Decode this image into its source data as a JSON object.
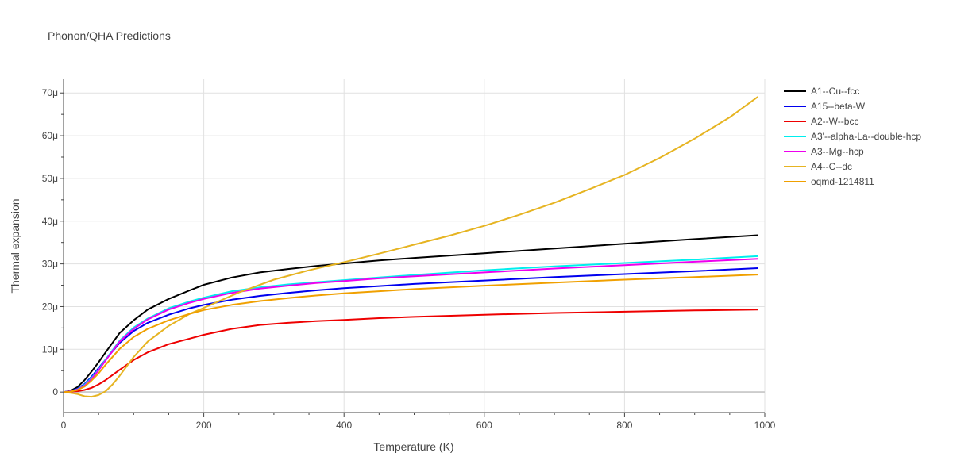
{
  "chart_data": {
    "type": "line",
    "title": "Phonon/QHA Predictions",
    "xlabel": "Temperature (K)",
    "ylabel": "Thermal expansion",
    "xlim": [
      0,
      1000
    ],
    "ylim": [
      -4.8e-06,
      7.32e-05
    ],
    "grid": true,
    "legend_position": "right",
    "x_ticks": [
      {
        "value": 0,
        "label": "0"
      },
      {
        "value": 200,
        "label": "200"
      },
      {
        "value": 400,
        "label": "400"
      },
      {
        "value": 600,
        "label": "600"
      },
      {
        "value": 800,
        "label": "800"
      },
      {
        "value": 1000,
        "label": "1000"
      }
    ],
    "y_ticks": [
      {
        "value": 0,
        "label": "0"
      },
      {
        "value": 1e-05,
        "label": "10μ"
      },
      {
        "value": 2e-05,
        "label": "20μ"
      },
      {
        "value": 3e-05,
        "label": "30μ"
      },
      {
        "value": 4e-05,
        "label": "40μ"
      },
      {
        "value": 5e-05,
        "label": "50μ"
      },
      {
        "value": 6e-05,
        "label": "60μ"
      },
      {
        "value": 7e-05,
        "label": "70μ"
      }
    ],
    "series": [
      {
        "name": "A1--Cu--fcc",
        "color": "#000000",
        "x": [
          0,
          10,
          20,
          30,
          40,
          50,
          60,
          80,
          100,
          120,
          150,
          180,
          200,
          240,
          280,
          320,
          360,
          400,
          450,
          500,
          600,
          700,
          800,
          900,
          990
        ],
        "y": [
          0,
          3e-07,
          1.2e-06,
          2.8e-06,
          4.8e-06,
          7e-06,
          9.3e-06,
          1.38e-05,
          1.68e-05,
          1.93e-05,
          2.18e-05,
          2.38e-05,
          2.51e-05,
          2.68e-05,
          2.8e-05,
          2.88e-05,
          2.95e-05,
          3.01e-05,
          3.08e-05,
          3.14e-05,
          3.25e-05,
          3.36e-05,
          3.47e-05,
          3.58e-05,
          3.67e-05
        ]
      },
      {
        "name": "A15--beta-W",
        "color": "#0000ee",
        "x": [
          0,
          10,
          20,
          30,
          40,
          50,
          60,
          80,
          100,
          120,
          150,
          180,
          200,
          240,
          280,
          320,
          360,
          400,
          450,
          500,
          600,
          700,
          800,
          900,
          990
        ],
        "y": [
          0,
          2e-07,
          8e-07,
          1.9e-06,
          3.6e-06,
          5.6e-06,
          7.6e-06,
          1.15e-05,
          1.43e-05,
          1.62e-05,
          1.81e-05,
          1.96e-05,
          2.04e-05,
          2.16e-05,
          2.25e-05,
          2.32e-05,
          2.38e-05,
          2.43e-05,
          2.48e-05,
          2.53e-05,
          2.61e-05,
          2.69e-05,
          2.76e-05,
          2.83e-05,
          2.9e-05
        ]
      },
      {
        "name": "A2--W--bcc",
        "color": "#ee0000",
        "x": [
          0,
          10,
          20,
          30,
          40,
          50,
          60,
          80,
          100,
          120,
          150,
          180,
          200,
          240,
          280,
          320,
          360,
          400,
          450,
          500,
          600,
          700,
          800,
          900,
          990
        ],
        "y": [
          0,
          1e-07,
          2e-07,
          5e-07,
          1e-06,
          1.8e-06,
          2.8e-06,
          5.2e-06,
          7.5e-06,
          9.3e-06,
          1.12e-05,
          1.25e-05,
          1.34e-05,
          1.48e-05,
          1.57e-05,
          1.62e-05,
          1.66e-05,
          1.69e-05,
          1.73e-05,
          1.76e-05,
          1.81e-05,
          1.85e-05,
          1.88e-05,
          1.91e-05,
          1.93e-05
        ]
      },
      {
        "name": "A3'--alpha-La--double-hcp",
        "color": "#00eeee",
        "x": [
          0,
          10,
          20,
          30,
          40,
          50,
          60,
          80,
          100,
          120,
          150,
          180,
          200,
          240,
          280,
          320,
          360,
          400,
          450,
          500,
          600,
          700,
          800,
          900,
          990
        ],
        "y": [
          0,
          2e-07,
          7e-07,
          1.7e-06,
          3.3e-06,
          5.3e-06,
          7.6e-06,
          1.2e-05,
          1.51e-05,
          1.72e-05,
          1.96e-05,
          2.12e-05,
          2.21e-05,
          2.36e-05,
          2.45e-05,
          2.52e-05,
          2.57e-05,
          2.62e-05,
          2.68e-05,
          2.74e-05,
          2.85e-05,
          2.94e-05,
          3.02e-05,
          3.1e-05,
          3.18e-05
        ]
      },
      {
        "name": "A3--Mg--hcp",
        "color": "#ee00ee",
        "x": [
          0,
          10,
          20,
          30,
          40,
          50,
          60,
          80,
          100,
          120,
          150,
          180,
          200,
          240,
          280,
          320,
          360,
          400,
          450,
          500,
          600,
          700,
          800,
          900,
          990
        ],
        "y": [
          0,
          2e-07,
          6e-07,
          1.5e-06,
          3.1e-06,
          5.1e-06,
          7.4e-06,
          1.18e-05,
          1.48e-05,
          1.7e-05,
          1.93e-05,
          2.09e-05,
          2.18e-05,
          2.32e-05,
          2.42e-05,
          2.49e-05,
          2.55e-05,
          2.6e-05,
          2.66e-05,
          2.71e-05,
          2.8e-05,
          2.89e-05,
          2.97e-05,
          3.05e-05,
          3.12e-05
        ]
      },
      {
        "name": "A4--C--dc",
        "color": "#e6b422",
        "x": [
          0,
          10,
          20,
          30,
          40,
          50,
          60,
          70,
          80,
          90,
          100,
          120,
          150,
          180,
          200,
          250,
          300,
          350,
          400,
          450,
          500,
          550,
          600,
          650,
          700,
          750,
          800,
          850,
          900,
          950,
          990
        ],
        "y": [
          0,
          -2e-07,
          -5e-07,
          -1e-06,
          -1.1e-06,
          -7e-07,
          2e-07,
          1.8e-06,
          3.8e-06,
          6e-06,
          8.2e-06,
          1.18e-05,
          1.55e-05,
          1.83e-05,
          1.97e-05,
          2.33e-05,
          2.63e-05,
          2.85e-05,
          3.04e-05,
          3.24e-05,
          3.45e-05,
          3.66e-05,
          3.89e-05,
          4.15e-05,
          4.43e-05,
          4.75e-05,
          5.08e-05,
          5.48e-05,
          5.93e-05,
          6.43e-05,
          6.91e-05
        ]
      },
      {
        "name": "oqmd-1214811",
        "color": "#f0a000",
        "x": [
          0,
          10,
          20,
          30,
          40,
          50,
          60,
          80,
          100,
          120,
          150,
          180,
          200,
          240,
          280,
          320,
          360,
          400,
          450,
          500,
          600,
          700,
          800,
          900,
          990
        ],
        "y": [
          0,
          1e-07,
          5e-07,
          1.3e-06,
          2.7e-06,
          4.4e-06,
          6.4e-06,
          1.01e-05,
          1.29e-05,
          1.48e-05,
          1.68e-05,
          1.83e-05,
          1.92e-05,
          2.04e-05,
          2.13e-05,
          2.2e-05,
          2.26e-05,
          2.31e-05,
          2.36e-05,
          2.41e-05,
          2.49e-05,
          2.56e-05,
          2.63e-05,
          2.69e-05,
          2.75e-05
        ]
      }
    ]
  }
}
